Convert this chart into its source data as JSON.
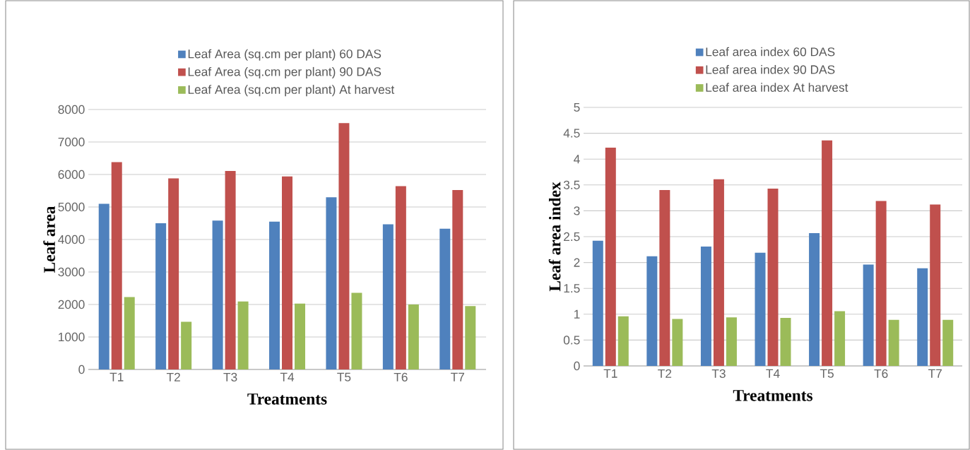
{
  "chart_data": [
    {
      "type": "bar",
      "xlabel": "Treatments",
      "ylabel": "Leaf area",
      "categories": [
        "T1",
        "T2",
        "T3",
        "T4",
        "T5",
        "T6",
        "T7"
      ],
      "series": [
        {
          "name": "Leaf Area (sq.cm per plant) 60 DAS",
          "color": "#4f81bd",
          "values": [
            5100,
            4500,
            4580,
            4550,
            5300,
            4470,
            4330
          ]
        },
        {
          "name": "Leaf Area (sq.cm per plant) 90 DAS",
          "color": "#c0504d",
          "values": [
            6380,
            5880,
            6110,
            5940,
            7580,
            5640,
            5520
          ]
        },
        {
          "name": "Leaf Area (sq.cm per plant) At harvest",
          "color": "#9bbb59",
          "values": [
            2230,
            1470,
            2090,
            2030,
            2360,
            2000,
            1950
          ]
        }
      ],
      "ylim": [
        0,
        8000
      ],
      "yticks": [
        0,
        1000,
        2000,
        3000,
        4000,
        5000,
        6000,
        7000,
        8000
      ],
      "grid": "y",
      "legend": "top"
    },
    {
      "type": "bar",
      "xlabel": "Treatments",
      "ylabel": "Leaf area index",
      "categories": [
        "T1",
        "T2",
        "T3",
        "T4",
        "T5",
        "T6",
        "T7"
      ],
      "series": [
        {
          "name": "Leaf area index 60 DAS",
          "color": "#4f81bd",
          "values": [
            2.42,
            2.12,
            2.31,
            2.19,
            2.57,
            1.96,
            1.89
          ]
        },
        {
          "name": "Leaf area index 90 DAS",
          "color": "#c0504d",
          "values": [
            4.22,
            3.4,
            3.61,
            3.43,
            4.36,
            3.19,
            3.12
          ]
        },
        {
          "name": "Leaf area index At harvest",
          "color": "#9bbb59",
          "values": [
            0.96,
            0.91,
            0.94,
            0.93,
            1.06,
            0.89,
            0.89
          ]
        }
      ],
      "ylim": [
        0,
        5
      ],
      "yticks": [
        0,
        0.5,
        1,
        1.5,
        2,
        2.5,
        3,
        3.5,
        4,
        4.5,
        5
      ],
      "grid": "y",
      "legend": "top"
    }
  ]
}
